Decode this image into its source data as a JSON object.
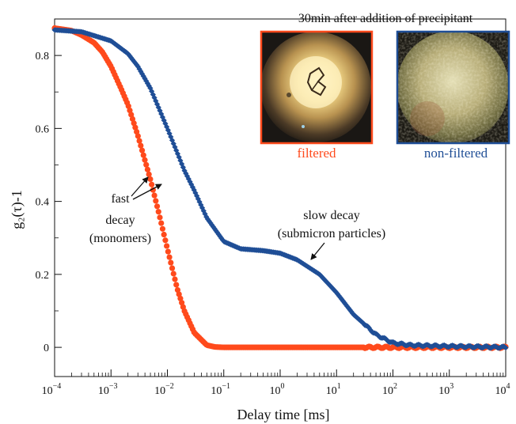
{
  "chart_data": {
    "type": "scatter",
    "xscale": "log",
    "xlim": [
      0.0001,
      10000
    ],
    "ylim": [
      -0.08,
      0.9
    ],
    "xlabel": "Delay time [ms]",
    "ylabel": "g₂(τ)-1",
    "x_tick_values": [
      0.0001,
      0.001,
      0.01,
      0.1,
      1,
      10,
      100,
      1000,
      10000
    ],
    "x_tick_labels": [
      {
        "base": "10",
        "exp": "−4"
      },
      {
        "base": "10",
        "exp": "−3"
      },
      {
        "base": "10",
        "exp": "−2"
      },
      {
        "base": "10",
        "exp": "−1"
      },
      {
        "base": "10",
        "exp": "0"
      },
      {
        "base": "10",
        "exp": "1"
      },
      {
        "base": "10",
        "exp": "2"
      },
      {
        "base": "10",
        "exp": "3"
      },
      {
        "base": "10",
        "exp": "4"
      }
    ],
    "y_ticks": [
      0,
      0.2,
      0.4,
      0.6,
      0.8
    ],
    "y_tick_labels": [
      "0",
      "0.2",
      "0.4",
      "0.6",
      "0.8"
    ],
    "series": [
      {
        "name": "filtered",
        "color": "#ff4a1c",
        "marker": "circle",
        "points": [
          [
            0.0001,
            0.875
          ],
          [
            0.0002,
            0.868
          ],
          [
            0.0003,
            0.856
          ],
          [
            0.0005,
            0.835
          ],
          [
            0.0007,
            0.81
          ],
          [
            0.001,
            0.77
          ],
          [
            0.0015,
            0.71
          ],
          [
            0.002,
            0.665
          ],
          [
            0.003,
            0.58
          ],
          [
            0.005,
            0.46
          ],
          [
            0.007,
            0.37
          ],
          [
            0.01,
            0.27
          ],
          [
            0.015,
            0.16
          ],
          [
            0.02,
            0.1
          ],
          [
            0.03,
            0.04
          ],
          [
            0.05,
            0.006
          ],
          [
            0.07,
            0.001
          ],
          [
            0.1,
            0.0
          ],
          [
            1,
            0.0
          ],
          [
            10,
            0.0
          ],
          [
            100,
            0.0
          ],
          [
            1000,
            0.0
          ],
          [
            10000,
            0.0
          ]
        ]
      },
      {
        "name": "non-filtered",
        "color": "#1f4e96",
        "marker": "diamond",
        "points": [
          [
            0.0001,
            0.87
          ],
          [
            0.0003,
            0.865
          ],
          [
            0.001,
            0.84
          ],
          [
            0.002,
            0.805
          ],
          [
            0.003,
            0.77
          ],
          [
            0.005,
            0.71
          ],
          [
            0.01,
            0.6
          ],
          [
            0.02,
            0.485
          ],
          [
            0.03,
            0.43
          ],
          [
            0.05,
            0.355
          ],
          [
            0.1,
            0.29
          ],
          [
            0.2,
            0.27
          ],
          [
            0.5,
            0.265
          ],
          [
            1,
            0.258
          ],
          [
            2,
            0.24
          ],
          [
            5,
            0.2
          ],
          [
            10,
            0.15
          ],
          [
            20,
            0.09
          ],
          [
            50,
            0.035
          ],
          [
            100,
            0.012
          ],
          [
            200,
            0.006
          ],
          [
            1000,
            0.003
          ],
          [
            10000,
            0.0
          ]
        ]
      }
    ],
    "annotations": [
      {
        "lines": [
          "fast",
          "decay",
          "(monomers)"
        ]
      },
      {
        "lines": [
          "slow decay",
          "(submicron particles)"
        ]
      }
    ],
    "inset": {
      "title": "30min after addition of precipitant",
      "panels": [
        {
          "caption": "filtered",
          "color": "#ff4a1c"
        },
        {
          "caption": "non-filtered",
          "color": "#1f4e96"
        }
      ]
    }
  }
}
